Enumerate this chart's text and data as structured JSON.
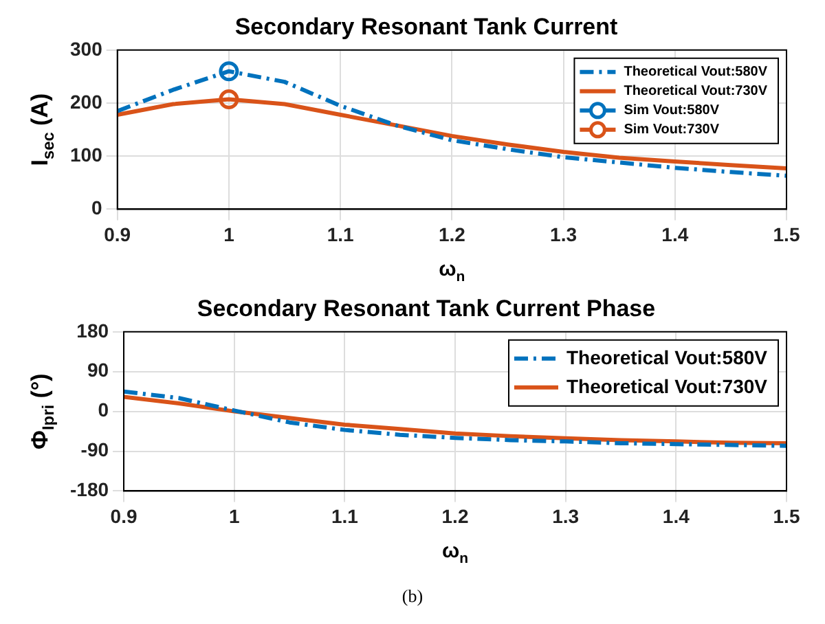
{
  "chart_data": [
    {
      "type": "line",
      "title": "Secondary Resonant Tank Current",
      "xlabel": "ω$_{n}$",
      "ylabel": "I$_{sec}$ (A)",
      "x": [
        0.9,
        0.95,
        1.0,
        1.05,
        1.1,
        1.15,
        1.2,
        1.25,
        1.3,
        1.35,
        1.4,
        1.45,
        1.5
      ],
      "xlim": [
        0.9,
        1.5
      ],
      "xticks": [
        0.9,
        1,
        1.1,
        1.2,
        1.3,
        1.4,
        1.5
      ],
      "ylim": [
        0,
        300
      ],
      "yticks": [
        0,
        100,
        200,
        300
      ],
      "grid": true,
      "legend": "top right",
      "series": [
        {
          "name": "Theoretical Vout:580V",
          "color": "#0072bd",
          "line_style": "dashed",
          "values": [
            185,
            225,
            260,
            240,
            195,
            158,
            130,
            113,
            98,
            88,
            78,
            70,
            63
          ]
        },
        {
          "name": "Theoretical Vout:730V",
          "color": "#d95319",
          "line_style": "solid",
          "values": [
            178,
            198,
            207,
            198,
            178,
            158,
            138,
            122,
            108,
            97,
            90,
            83,
            77
          ]
        },
        {
          "name": "Sim Vout:580V",
          "type": "scatter",
          "marker": "circle",
          "color": "#0072bd",
          "x": [
            1.0
          ],
          "values": [
            260
          ]
        },
        {
          "name": "Sim Vout:730V",
          "type": "scatter",
          "marker": "circle",
          "color": "#d95319",
          "x": [
            1.0
          ],
          "values": [
            207
          ]
        }
      ]
    },
    {
      "type": "line",
      "title": "Secondary Resonant Tank Current Phase",
      "xlabel": "ω$_{n}$",
      "ylabel": "Φ$_{Ipri}$ (°)",
      "x": [
        0.9,
        0.95,
        1.0,
        1.05,
        1.1,
        1.15,
        1.2,
        1.25,
        1.3,
        1.35,
        1.4,
        1.45,
        1.5
      ],
      "xlim": [
        0.9,
        1.5
      ],
      "xticks": [
        0.9,
        1,
        1.1,
        1.2,
        1.3,
        1.4,
        1.5
      ],
      "ylim": [
        -180,
        180
      ],
      "yticks": [
        -180,
        -90,
        0,
        90,
        180
      ],
      "grid": true,
      "legend": "top right",
      "annotations": [
        "(b)"
      ],
      "series": [
        {
          "name": "Theoretical Vout:580V",
          "color": "#0072bd",
          "line_style": "dashed",
          "values": [
            45,
            30,
            2,
            -25,
            -42,
            -53,
            -60,
            -65,
            -68,
            -72,
            -74,
            -76,
            -78
          ]
        },
        {
          "name": "Theoretical Vout:730V",
          "color": "#d95319",
          "line_style": "solid",
          "values": [
            33,
            18,
            0,
            -15,
            -30,
            -40,
            -50,
            -56,
            -61,
            -65,
            -68,
            -71,
            -72
          ]
        }
      ]
    }
  ]
}
